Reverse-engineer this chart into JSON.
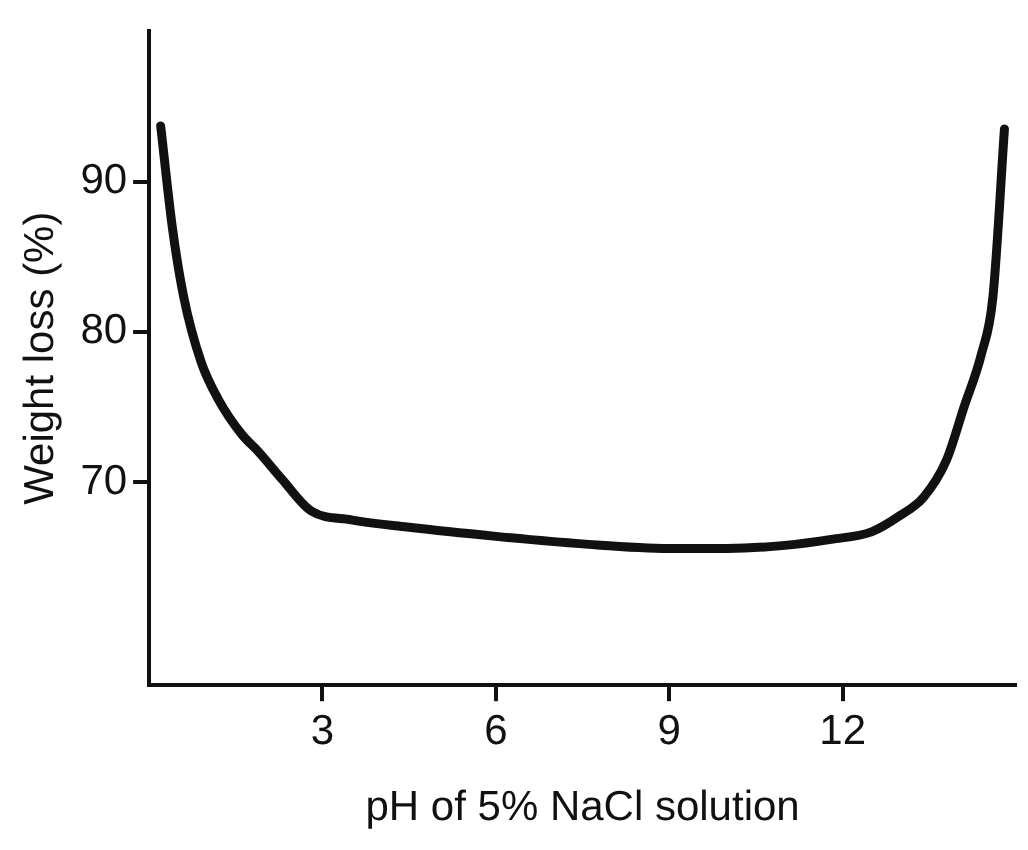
{
  "chart_data": {
    "type": "line",
    "xlabel": "pH of 5% NaCl solution",
    "ylabel": "Weight loss (%)",
    "xlim": [
      0,
      15
    ],
    "ylim": [
      56.5,
      100
    ],
    "xticks": [
      3,
      6,
      9,
      12
    ],
    "yticks": [
      70,
      80,
      90
    ],
    "grid": false,
    "legend": false,
    "marker": "none",
    "line_style": "solid",
    "series": [
      {
        "color": "#111111",
        "x": [
          0.2,
          0.4,
          0.6,
          0.9,
          1.2,
          1.6,
          1.9,
          2.3,
          2.8,
          3.5,
          4.5,
          6,
          7.5,
          9,
          10,
          11,
          11.8,
          12.5,
          13,
          13.4,
          13.8,
          14.1,
          14.4,
          14.6,
          14.8
        ],
        "values": [
          93.7,
          87,
          82.3,
          78,
          75.5,
          73.2,
          72,
          70.2,
          68.1,
          67.5,
          67,
          66.4,
          65.9,
          65.6,
          65.6,
          65.8,
          66.2,
          66.7,
          67.8,
          69,
          71.5,
          75,
          78.5,
          82.3,
          93.5
        ]
      }
    ]
  }
}
